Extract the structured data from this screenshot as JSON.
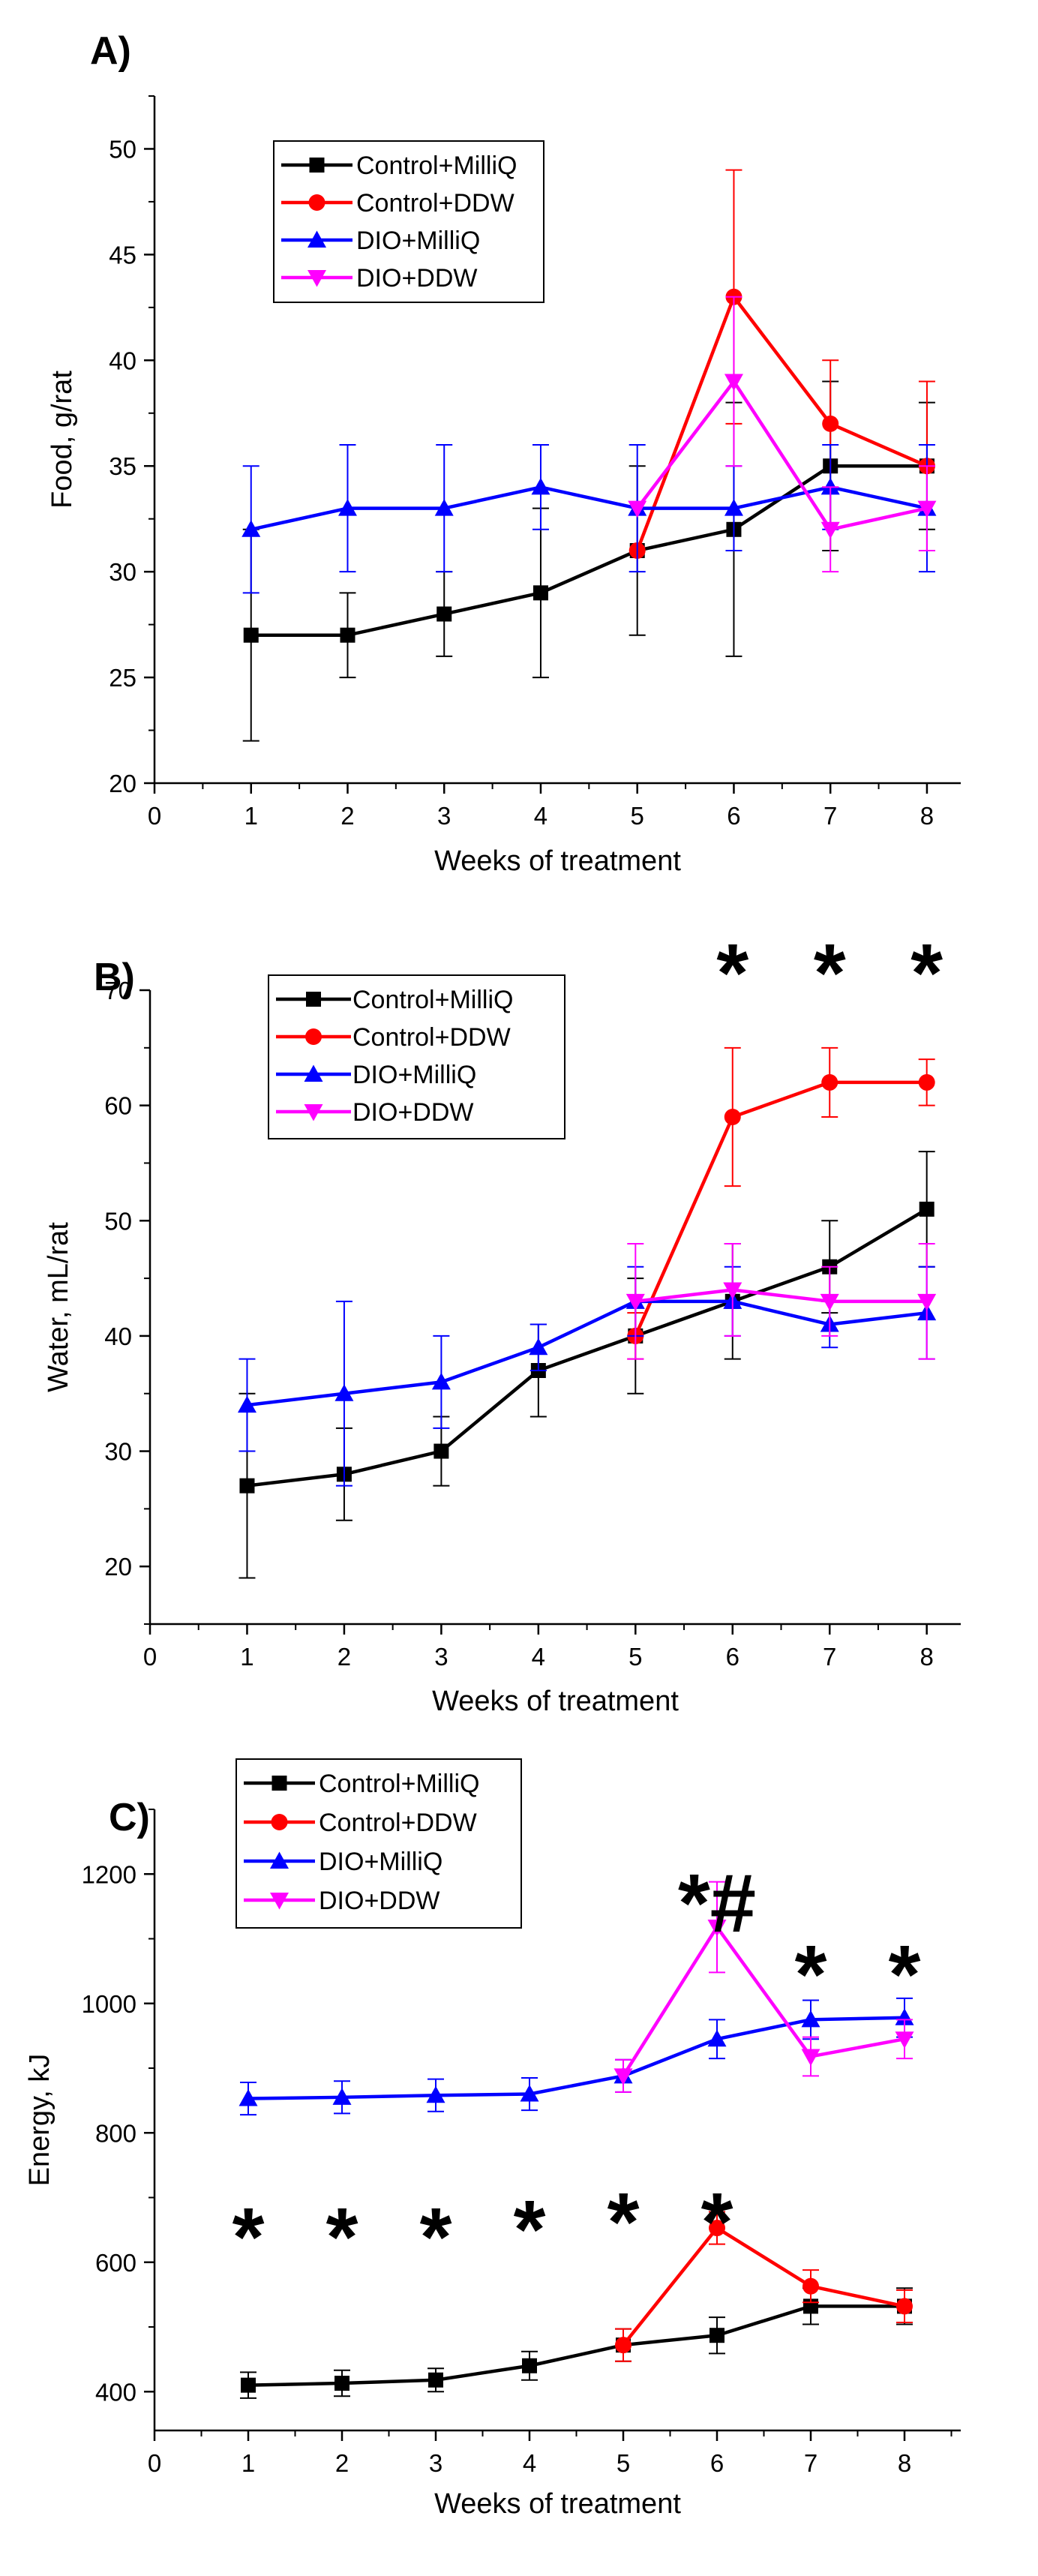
{
  "colors": {
    "Control+MilliQ": "#000000",
    "Control+DDW": "#ff0000",
    "DIO+MilliQ": "#0000ff",
    "DIO+DDW": "#ff00ff"
  },
  "chart_data": [
    {
      "type": "line",
      "panel_label": "A)",
      "title": "",
      "xlabel": "Weeks of treatment",
      "ylabel": "Food, g/rat",
      "xlim": [
        0,
        8.35
      ],
      "ylim": [
        20,
        52.5
      ],
      "xticks": [
        0,
        1,
        2,
        3,
        4,
        5,
        6,
        7,
        8
      ],
      "yticks": [
        20,
        25,
        30,
        35,
        40,
        45,
        50
      ],
      "legend_position": "top-left",
      "series": [
        {
          "name": "Control+MilliQ",
          "marker": "square",
          "x": [
            1,
            2,
            3,
            4,
            5,
            6,
            7,
            8
          ],
          "y": [
            27,
            27,
            28,
            29,
            31,
            32,
            35,
            35
          ],
          "err": [
            5,
            2,
            2,
            4,
            4,
            6,
            4,
            3
          ]
        },
        {
          "name": "Control+DDW",
          "marker": "circle",
          "x": [
            5,
            6,
            7,
            8
          ],
          "y": [
            31,
            43,
            37,
            35
          ],
          "err": [
            0,
            6,
            3,
            4
          ]
        },
        {
          "name": "DIO+MilliQ",
          "marker": "triangle-up",
          "x": [
            1,
            2,
            3,
            4,
            5,
            6,
            7,
            8
          ],
          "y": [
            32,
            33,
            33,
            34,
            33,
            33,
            34,
            33
          ],
          "err": [
            3,
            3,
            3,
            2,
            3,
            2,
            2,
            3
          ]
        },
        {
          "name": "DIO+DDW",
          "marker": "triangle-down",
          "x": [
            5,
            6,
            7,
            8
          ],
          "y": [
            33,
            39,
            32,
            33
          ],
          "err": [
            0,
            4,
            2,
            2
          ]
        }
      ],
      "annotations": []
    },
    {
      "type": "line",
      "panel_label": "B)",
      "title": "",
      "xlabel": "Weeks of treatment",
      "ylabel": "Water, mL/rat",
      "xlim": [
        0,
        8.35
      ],
      "ylim": [
        15,
        70
      ],
      "xticks": [
        0,
        1,
        2,
        3,
        4,
        5,
        6,
        7,
        8
      ],
      "yticks": [
        20,
        30,
        40,
        50,
        60,
        70
      ],
      "legend_position": "top-left",
      "series": [
        {
          "name": "Control+MilliQ",
          "marker": "square",
          "x": [
            1,
            2,
            3,
            4,
            5,
            6,
            7,
            8
          ],
          "y": [
            27,
            28,
            30,
            37,
            40,
            43,
            46,
            51
          ],
          "err": [
            8,
            4,
            3,
            4,
            5,
            5,
            4,
            5
          ]
        },
        {
          "name": "Control+DDW",
          "marker": "circle",
          "x": [
            5,
            6,
            7,
            8
          ],
          "y": [
            40,
            59,
            62,
            62
          ],
          "err": [
            2,
            6,
            3,
            2
          ]
        },
        {
          "name": "DIO+MilliQ",
          "marker": "triangle-up",
          "x": [
            1,
            2,
            3,
            4,
            5,
            6,
            7,
            8
          ],
          "y": [
            34,
            35,
            36,
            39,
            43,
            43,
            41,
            42
          ],
          "err": [
            4,
            8,
            4,
            2,
            3,
            3,
            2,
            4
          ]
        },
        {
          "name": "DIO+DDW",
          "marker": "triangle-down",
          "x": [
            5,
            6,
            7,
            8
          ],
          "y": [
            43,
            44,
            43,
            43
          ],
          "err": [
            5,
            4,
            3,
            5
          ]
        }
      ],
      "annotations": [
        {
          "text": "*",
          "x": 6
        },
        {
          "text": "*",
          "x": 7
        },
        {
          "text": "*",
          "x": 8
        }
      ]
    },
    {
      "type": "line",
      "panel_label": "C)",
      "title": "",
      "xlabel": "Weeks of treatment",
      "ylabel": "Energy, kJ",
      "xlim": [
        0,
        8.6
      ],
      "ylim": [
        340,
        1300
      ],
      "xticks": [
        0,
        1,
        2,
        3,
        4,
        5,
        6,
        7,
        8
      ],
      "yticks": [
        400,
        600,
        800,
        1000,
        1200
      ],
      "legend_position": "top-left",
      "series": [
        {
          "name": "Control+MilliQ",
          "marker": "square",
          "x": [
            1,
            2,
            3,
            4,
            5,
            6,
            7,
            8
          ],
          "y": [
            410,
            413,
            418,
            440,
            472,
            487,
            532,
            532
          ],
          "err": [
            20,
            20,
            18,
            22,
            25,
            28,
            28,
            28
          ]
        },
        {
          "name": "Control+DDW",
          "marker": "circle",
          "x": [
            5,
            6,
            7,
            8
          ],
          "y": [
            472,
            653,
            563,
            532
          ],
          "err": [
            25,
            25,
            25,
            25
          ]
        },
        {
          "name": "DIO+MilliQ",
          "marker": "triangle-up",
          "x": [
            1,
            2,
            3,
            4,
            5,
            6,
            7,
            8
          ],
          "y": [
            853,
            855,
            858,
            860,
            888,
            945,
            975,
            978
          ],
          "err": [
            25,
            25,
            25,
            25,
            25,
            30,
            30,
            30
          ]
        },
        {
          "name": "DIO+DDW",
          "marker": "triangle-down",
          "x": [
            5,
            6,
            7,
            8
          ],
          "y": [
            888,
            1118,
            918,
            945
          ],
          "err": [
            25,
            70,
            30,
            30
          ]
        }
      ],
      "annotations": [
        {
          "text": "*",
          "x": 1
        },
        {
          "text": "*",
          "x": 2
        },
        {
          "text": "*",
          "x": 3
        },
        {
          "text": "*",
          "x": 4
        },
        {
          "text": "*",
          "x": 5
        },
        {
          "text": "*#",
          "x": 6
        },
        {
          "text": "*",
          "x": 7
        },
        {
          "text": "*",
          "x": 8
        },
        {
          "text": "*",
          "x": 6
        }
      ]
    }
  ]
}
